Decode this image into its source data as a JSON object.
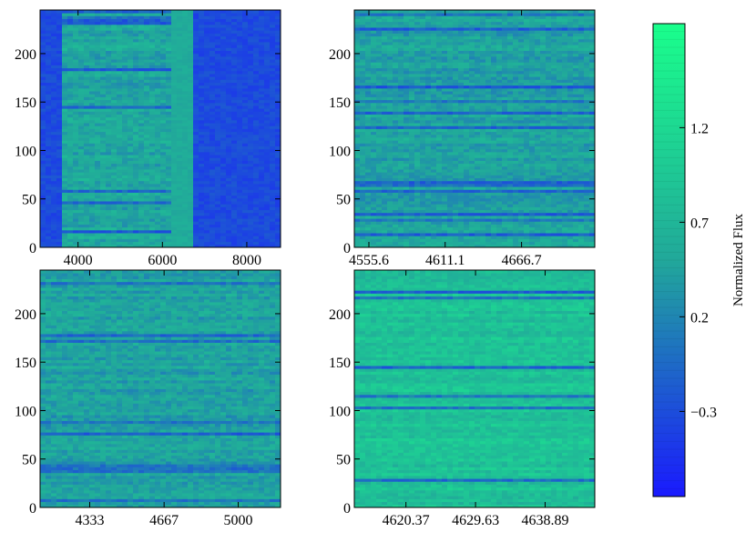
{
  "colorbar": {
    "label": "Normalized Flux",
    "ticks": [
      -0.3,
      0.2,
      0.7,
      1.2
    ],
    "tick_labels": [
      "−0.3",
      "0.2",
      "0.7",
      "1.2"
    ],
    "range": [
      -0.75,
      1.75
    ],
    "colors": {
      "low": "#1a1aff",
      "mid": "#21a89a",
      "high": "#1aff8c"
    }
  },
  "chart_data": [
    {
      "type": "heatmap",
      "position": "top-left",
      "xlim": [
        3100,
        8800
      ],
      "ylim": [
        0,
        245
      ],
      "xticks": [
        4000,
        6000,
        8000
      ],
      "xtick_labels": [
        "4000",
        "6000",
        "8000"
      ],
      "yticks": [
        0,
        50,
        100,
        150,
        200
      ],
      "ytick_labels": [
        "0",
        "50",
        "100",
        "150",
        "200"
      ],
      "valid_x_range": [
        3650,
        6750
      ],
      "base_level": 0.5
    },
    {
      "type": "heatmap",
      "position": "top-right",
      "xlim": [
        4545,
        4720
      ],
      "ylim": [
        0,
        245
      ],
      "xticks": [
        4555.6,
        4611.1,
        4666.7
      ],
      "xtick_labels": [
        "4555.6",
        "4611.1",
        "4666.7"
      ],
      "yticks": [
        0,
        50,
        100,
        150,
        200
      ],
      "ytick_labels": [
        "0",
        "50",
        "100",
        "150",
        "200"
      ],
      "base_level": 0.45
    },
    {
      "type": "heatmap",
      "position": "bottom-left",
      "xlim": [
        4110,
        5190
      ],
      "ylim": [
        0,
        245
      ],
      "xticks": [
        4333,
        4667,
        5000
      ],
      "xtick_labels": [
        "4333",
        "4667",
        "5000"
      ],
      "yticks": [
        0,
        50,
        100,
        150,
        200
      ],
      "ytick_labels": [
        "0",
        "50",
        "100",
        "150",
        "200"
      ],
      "base_level": 0.45
    },
    {
      "type": "heatmap",
      "position": "bottom-right",
      "xlim": [
        4613.5,
        4645.5
      ],
      "ylim": [
        0,
        245
      ],
      "xticks": [
        4620.37,
        4629.63,
        4638.89
      ],
      "xtick_labels": [
        "4620.37",
        "4629.63",
        "4638.89"
      ],
      "yticks": [
        0,
        50,
        100,
        150,
        200
      ],
      "ytick_labels": [
        "0",
        "50",
        "100",
        "150",
        "200"
      ],
      "base_level": 0.85
    }
  ]
}
